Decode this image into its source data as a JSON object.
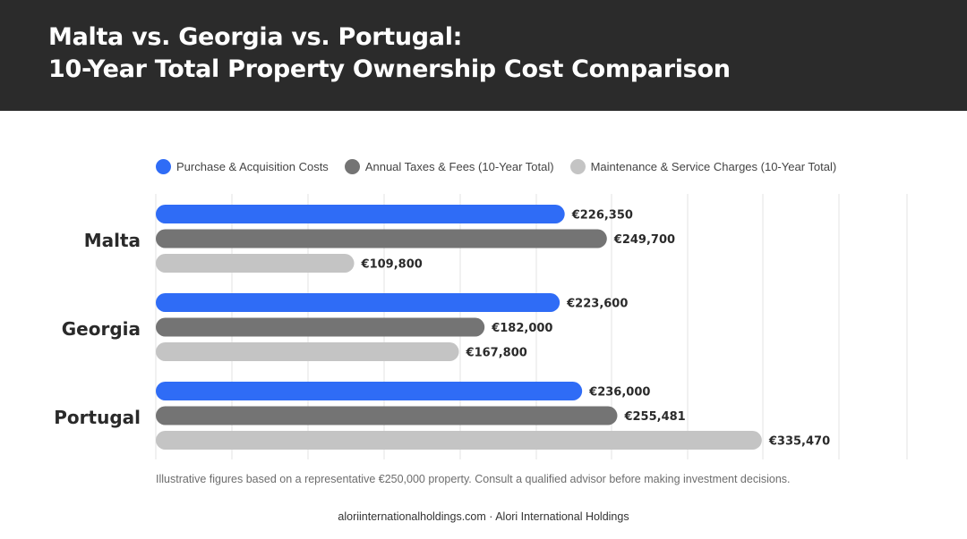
{
  "header": {
    "title_line1": "Malta vs. Georgia vs. Portugal:",
    "title_line2": "10-Year Total Property Ownership Cost Comparison"
  },
  "colors": {
    "header_bg": "#2b2b2b",
    "series": [
      "#2f6cf6",
      "#747474",
      "#c4c4c4"
    ]
  },
  "chart_data": {
    "type": "bar",
    "orientation": "horizontal",
    "title": "Malta vs. Georgia vs. Portugal: 10-Year Total Property Ownership Cost Comparison",
    "categories": [
      "Malta",
      "Georgia",
      "Portugal"
    ],
    "series": [
      {
        "name": "Purchase & Acquisition Costs",
        "values": [
          226350,
          223600,
          236000
        ],
        "labels": [
          "€226,350",
          "€223,600",
          "€236,000"
        ]
      },
      {
        "name": "Annual Taxes & Fees (10-Year Total)",
        "values": [
          249700,
          182000,
          255481
        ],
        "labels": [
          "€249,700",
          "€182,000",
          "€255,481"
        ]
      },
      {
        "name": "Maintenance & Service Charges (10-Year Total)",
        "values": [
          109800,
          167800,
          335470
        ],
        "labels": [
          "€109,800",
          "€167,800",
          "€335,470"
        ]
      }
    ],
    "legend_position": "top",
    "grid": true,
    "xlabel": "",
    "ylabel": ""
  },
  "footnote": "Illustrative figures based on a representative €250,000 property. Consult a qualified advisor before making investment decisions.",
  "credit": "aloriinternationalholdings.com · Alori International Holdings"
}
